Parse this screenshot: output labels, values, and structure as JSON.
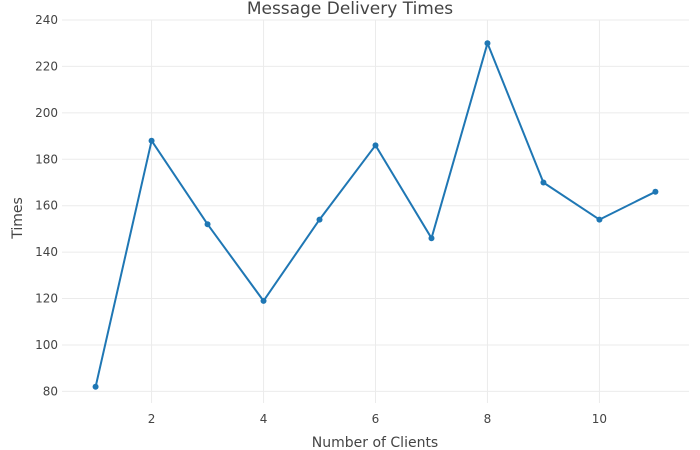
{
  "chart_data": {
    "type": "line",
    "title": "Message Delivery Times",
    "xlabel": "Number of Clients",
    "ylabel": "Times",
    "xlim": [
      0.4,
      11.6
    ],
    "ylim": [
      75,
      240
    ],
    "x_ticks": [
      2,
      4,
      6,
      8,
      10
    ],
    "y_ticks": [
      80,
      100,
      120,
      140,
      160,
      180,
      200,
      220,
      240
    ],
    "grid": true,
    "legend": "none",
    "colors": {
      "series": "#1f77b4",
      "grid": "#ebebeb",
      "text": "#444444"
    },
    "series": [
      {
        "x": [
          1,
          2,
          3,
          4,
          5,
          6,
          7,
          8,
          9,
          10,
          11
        ],
        "y": [
          82,
          188,
          152,
          119,
          154,
          186,
          146,
          230,
          170,
          154,
          166
        ]
      }
    ]
  }
}
